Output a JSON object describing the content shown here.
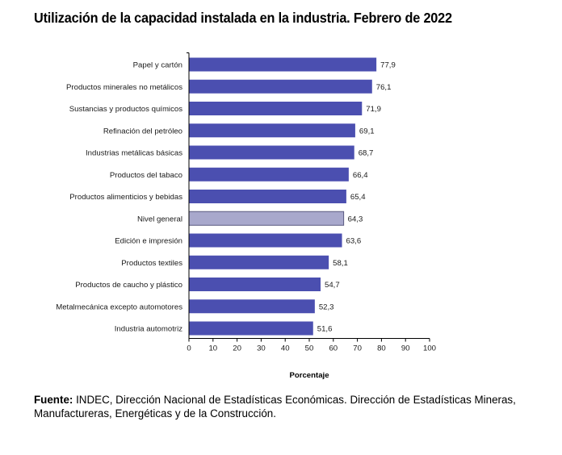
{
  "title": "Utilización de la capacidad instalada en la industria. Febrero de 2022",
  "source_label": "Fuente:",
  "source_text": " INDEC, Dirección Nacional de Estadísticas Económicas. Dirección de Estadísticas Mineras, Manufactureras, Energéticas y de la Construcción.",
  "colors": {
    "bar": "#4b4fb0",
    "highlight": "#a8a8cc",
    "axis": "#000000"
  },
  "chart_data": {
    "type": "bar",
    "orientation": "horizontal",
    "categories": [
      "Papel y cartón",
      "Productos minerales no metálicos",
      "Sustancias y productos químicos",
      "Refinación del petróleo",
      "Industrias metálicas básicas",
      "Productos del tabaco",
      "Productos alimenticios y bebidas",
      "Nivel general",
      "Edición e impresión",
      "Productos textiles",
      "Productos de caucho y plástico",
      "Metalmecánica excepto automotores",
      "Industria automotriz"
    ],
    "values": [
      77.9,
      76.1,
      71.9,
      69.1,
      68.7,
      66.4,
      65.4,
      64.3,
      63.6,
      58.1,
      54.7,
      52.3,
      51.6
    ],
    "value_labels": [
      "77,9",
      "76,1",
      "71,9",
      "69,1",
      "68,7",
      "66,4",
      "65,4",
      "64,3",
      "63,6",
      "58,1",
      "54,7",
      "52,3",
      "51,6"
    ],
    "highlight": "Nivel general",
    "xlabel": "Porcentaje",
    "xlim": [
      0,
      100
    ],
    "xticks": [
      0,
      10,
      20,
      30,
      40,
      50,
      60,
      70,
      80,
      90,
      100
    ],
    "grid": false,
    "legend": "none"
  }
}
